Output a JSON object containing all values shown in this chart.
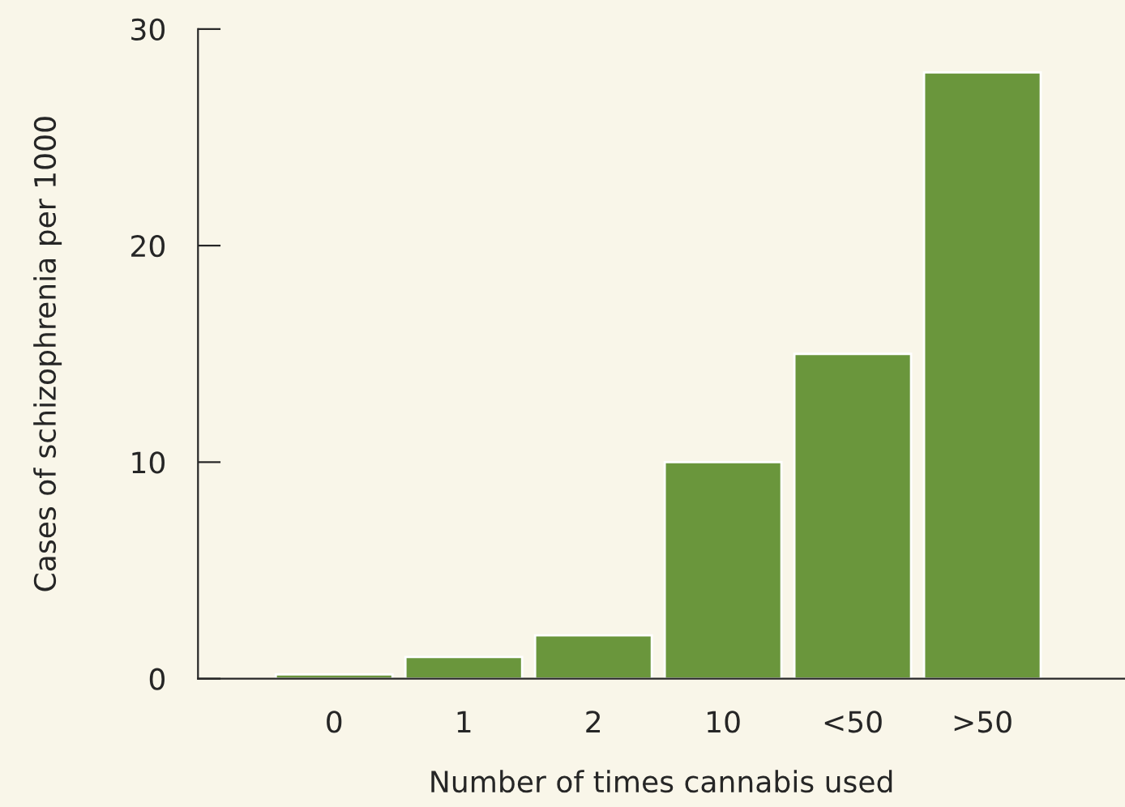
{
  "chart_data": {
    "type": "bar",
    "xlabel": "Number of times cannabis used",
    "ylabel": "Cases of schizophrenia per 1000",
    "categories": [
      "0",
      "1",
      "2",
      "10",
      "<50",
      ">50"
    ],
    "values": [
      0.2,
      1,
      2,
      10,
      15,
      28
    ],
    "color": "#6a963c",
    "ylim": [
      0,
      30
    ],
    "yticks": [
      0,
      10,
      20,
      30
    ],
    "grid": false,
    "legend": false
  }
}
